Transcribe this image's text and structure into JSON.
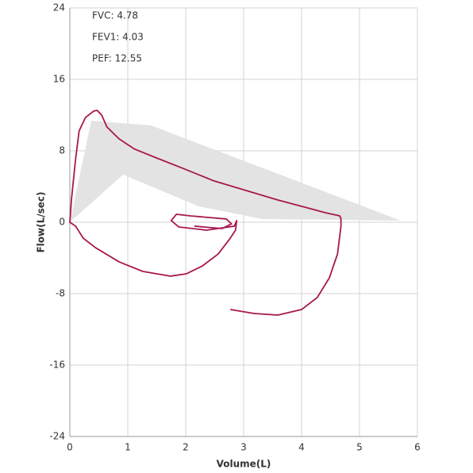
{
  "chart_data": {
    "type": "line",
    "x_label": "Volume(L)",
    "y_label": "Flow(L/sec)",
    "annotations": [
      "FVC: 4.78",
      "FEV1: 4.03",
      "PEF: 12.55"
    ],
    "xlim": [
      0,
      6
    ],
    "xticks": [
      0,
      1,
      2,
      3,
      4,
      5,
      6
    ],
    "ylim": [
      -24,
      24
    ],
    "yticks": [
      -24,
      -16,
      -8,
      0,
      8,
      16,
      24
    ],
    "grid": true,
    "series": [
      {
        "kind": "area",
        "color": "#e3e3e3",
        "x": [
          0,
          0.37,
          1.4,
          5.71,
          3.32,
          2.22,
          0.92
        ],
        "values": [
          0,
          11.38,
          10.84,
          0.18,
          0.36,
          1.78,
          5.33
        ]
      },
      {
        "kind": "line",
        "color": "#a8174f",
        "x": [
          2.15,
          2.63,
          2.79,
          2.7,
          2.08,
          1.84,
          1.75,
          1.88,
          2.36,
          2.84,
          2.88,
          2.86,
          2.77,
          2.56,
          2.29,
          2.01,
          1.74,
          1.26,
          0.85,
          0.44,
          0.23,
          0.1,
          0,
          0.03,
          0.1,
          0.16,
          0.27,
          0.41,
          0.47,
          0.55,
          0.64,
          0.85,
          1.12,
          1.53,
          1.95,
          2.49,
          3.04,
          3.59,
          4.0,
          4.41,
          4.66,
          4.68,
          4.68,
          4.62,
          4.48,
          4.27,
          4.0,
          3.59,
          3.18,
          2.77
        ],
        "values": [
          -0.44,
          -0.71,
          -0.18,
          0.36,
          0.71,
          0.89,
          0.18,
          -0.53,
          -0.89,
          -0.44,
          0.18,
          -0.89,
          -1.78,
          -3.56,
          -4.89,
          -5.78,
          -6.04,
          -5.51,
          -4.44,
          -2.84,
          -1.78,
          -0.44,
          0,
          2.67,
          7.11,
          10.22,
          11.73,
          12.44,
          12.53,
          12.0,
          10.67,
          9.33,
          8.18,
          7.11,
          6.04,
          4.62,
          3.56,
          2.49,
          1.78,
          1.07,
          0.71,
          0.36,
          -0.44,
          -3.56,
          -6.22,
          -8.44,
          -9.78,
          -10.4,
          -10.22,
          -9.78
        ]
      }
    ]
  }
}
